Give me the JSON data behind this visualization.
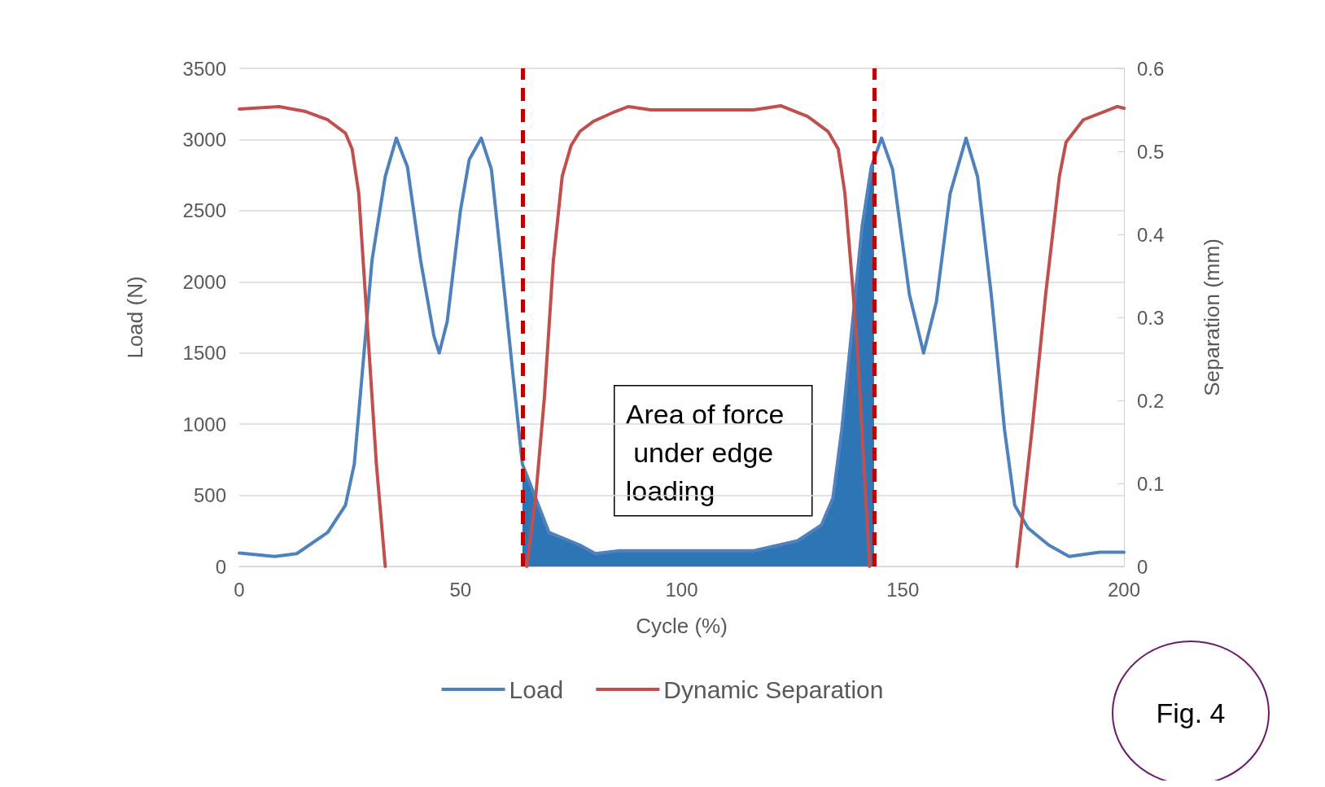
{
  "chart_data": {
    "type": "line",
    "xlabel": "Cycle (%)",
    "ylabel": "Load (N)",
    "y2label": "Separation (mm)",
    "xlim": [
      0,
      200
    ],
    "xticks": [
      0,
      50,
      100,
      150,
      200
    ],
    "ylim": [
      0,
      3500
    ],
    "yticks": [
      0,
      500,
      1000,
      1500,
      2000,
      2500,
      3000,
      3500
    ],
    "y2lim": [
      0,
      0.6
    ],
    "y2ticks": [
      0,
      0.1,
      0.2,
      0.3,
      0.4,
      0.5,
      0.6
    ],
    "grid": "y",
    "legend": "bottom",
    "marker": "none",
    "line_style": "solid",
    "series": [
      {
        "type": "area",
        "color": "#2e75b6",
        "x": [
          64,
          67,
          70,
          77,
          80.5,
          86,
          98.6,
          116.3,
          126.2,
          131.6,
          134.2,
          136.2,
          138.5,
          140.8,
          143.5
        ],
        "values": [
          720,
          480,
          240,
          150,
          90,
          110,
          110,
          110,
          180,
          290,
          480,
          960,
          1670,
          2390,
          2900
        ]
      },
      {
        "name": "Load",
        "color": "#4f81bd",
        "x": [
          0,
          8,
          13,
          20,
          24,
          26,
          28,
          30,
          33,
          35.5,
          38,
          41,
          44,
          45.2,
          47,
          50,
          52,
          54.7,
          57,
          60,
          62,
          64,
          67,
          70,
          77,
          80.5,
          86,
          98.6,
          116.3,
          126.2,
          131.6,
          134.2,
          136.2,
          138.5,
          140.8,
          142.9,
          145.2,
          147.7,
          151.5,
          154.7,
          157.6,
          160.7,
          164.3,
          166.9,
          170,
          173,
          175.3,
          178.3,
          183,
          187.6,
          194.5,
          200
        ],
        "values": [
          95,
          70,
          90,
          240,
          430,
          720,
          1430,
          2150,
          2740,
          3010,
          2810,
          2150,
          1620,
          1500,
          1720,
          2500,
          2860,
          3010,
          2790,
          1910,
          1310,
          720,
          480,
          240,
          150,
          90,
          110,
          110,
          110,
          180,
          290,
          480,
          960,
          1670,
          2390,
          2810,
          3010,
          2790,
          1910,
          1500,
          1860,
          2620,
          3010,
          2740,
          1910,
          960,
          430,
          270,
          150,
          70,
          100,
          100
        ]
      },
      {
        "name": "Dynamic Separation",
        "color": "#c0504d",
        "axis": "y2",
        "x": [
          0,
          9,
          15,
          20,
          24,
          25.5,
          27,
          29,
          31,
          33
        ],
        "values": [
          0.551,
          0.554,
          0.548,
          0.538,
          0.522,
          0.503,
          0.45,
          0.287,
          0.123,
          0
        ]
      },
      {
        "color": "#c0504d",
        "axis": "y2",
        "x": [
          65,
          67,
          69,
          71,
          73,
          75,
          77,
          80,
          85,
          88,
          93,
          116.3,
          122.4,
          128.5,
          133.1,
          135.4,
          136.9,
          138.5,
          139.7,
          142.5
        ],
        "values": [
          0,
          0.083,
          0.205,
          0.368,
          0.47,
          0.507,
          0.524,
          0.536,
          0.548,
          0.554,
          0.55,
          0.55,
          0.555,
          0.542,
          0.524,
          0.503,
          0.45,
          0.348,
          0.266,
          0
        ]
      },
      {
        "color": "#c0504d",
        "axis": "y2",
        "x": [
          175.8,
          179.2,
          182.3,
          185.4,
          186.9,
          190.8,
          198.5,
          200
        ],
        "values": [
          0,
          0.164,
          0.328,
          0.47,
          0.511,
          0.538,
          0.554,
          0.552
        ]
      }
    ],
    "ref_lines": [
      {
        "axis": "x",
        "value": 64,
        "color": "#c00000",
        "line_style": "dashed"
      },
      {
        "axis": "x",
        "value": 143.5,
        "color": "#c00000",
        "line_style": "dashed"
      }
    ],
    "annotations": [
      "Area of force under edge loading",
      "Fig. 4"
    ]
  }
}
